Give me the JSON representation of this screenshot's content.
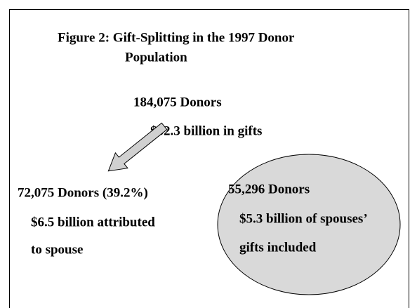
{
  "title": {
    "lines": [
      "Figure 2:  Gift-Splitting in the 1997 Donor",
      "Population"
    ]
  },
  "nodes": [
    {
      "lines": [
        "184,075 Donors",
        "$32.3 billion in gifts"
      ]
    },
    {
      "lines": [
        "72,075 Donors (39.2%)",
        "$6.5 billion attributed",
        "to spouse"
      ]
    },
    {
      "lines": [
        "55,296 Donors",
        "$5.3 billion of spouses’",
        "gifts included"
      ]
    }
  ]
}
